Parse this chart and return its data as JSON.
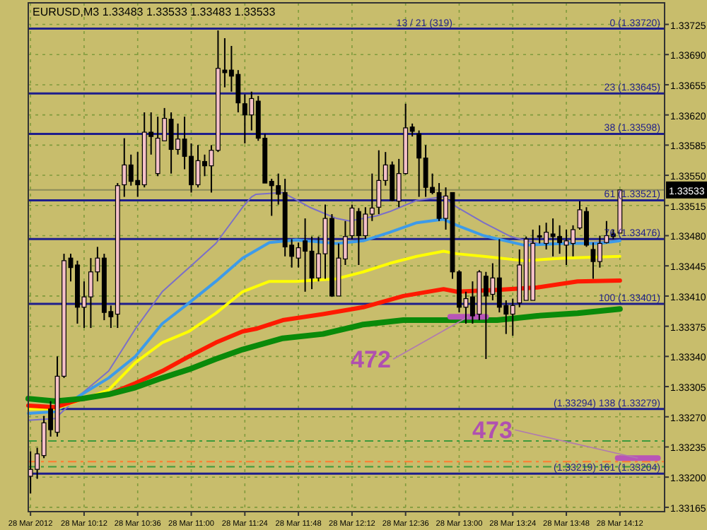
{
  "chart_data": {
    "type": "candlestick",
    "title": "EURUSD,M3  1.33483 1.33533 1.33483 1.33533",
    "x": [
      "2012-03-28T09:48",
      "2012-03-28T09:51",
      "2012-03-28T09:54",
      "2012-03-28T09:57",
      "2012-03-28T10:00",
      "2012-03-28T10:03",
      "2012-03-28T10:06",
      "2012-03-28T10:09",
      "2012-03-28T10:12",
      "2012-03-28T10:15",
      "2012-03-28T10:18",
      "2012-03-28T10:21",
      "2012-03-28T10:24",
      "2012-03-28T10:27",
      "2012-03-28T10:30",
      "2012-03-28T10:33",
      "2012-03-28T10:36",
      "2012-03-28T10:39",
      "2012-03-28T10:42",
      "2012-03-28T10:45",
      "2012-03-28T10:48",
      "2012-03-28T10:51",
      "2012-03-28T10:54",
      "2012-03-28T10:57",
      "2012-03-28T11:00",
      "2012-03-28T11:03",
      "2012-03-28T11:06",
      "2012-03-28T11:09",
      "2012-03-28T11:12",
      "2012-03-28T11:15",
      "2012-03-28T11:18",
      "2012-03-28T11:21",
      "2012-03-28T11:24",
      "2012-03-28T11:27",
      "2012-03-28T11:30",
      "2012-03-28T11:33",
      "2012-03-28T11:36",
      "2012-03-28T11:39",
      "2012-03-28T11:42",
      "2012-03-28T11:45",
      "2012-03-28T11:48",
      "2012-03-28T11:51",
      "2012-03-28T11:54",
      "2012-03-28T11:57",
      "2012-03-28T12:00",
      "2012-03-28T12:03",
      "2012-03-28T12:06",
      "2012-03-28T12:09",
      "2012-03-28T12:12",
      "2012-03-28T12:15",
      "2012-03-28T12:18",
      "2012-03-28T12:21",
      "2012-03-28T12:24",
      "2012-03-28T12:27",
      "2012-03-28T12:30",
      "2012-03-28T12:33",
      "2012-03-28T12:36",
      "2012-03-28T12:39",
      "2012-03-28T12:42",
      "2012-03-28T12:45",
      "2012-03-28T12:48",
      "2012-03-28T12:51",
      "2012-03-28T12:54",
      "2012-03-28T12:57",
      "2012-03-28T13:00",
      "2012-03-28T13:03",
      "2012-03-28T13:06",
      "2012-03-28T13:09",
      "2012-03-28T13:12",
      "2012-03-28T13:15",
      "2012-03-28T13:18",
      "2012-03-28T13:21",
      "2012-03-28T13:24",
      "2012-03-28T13:27",
      "2012-03-28T13:30",
      "2012-03-28T13:33",
      "2012-03-28T13:36",
      "2012-03-28T13:39",
      "2012-03-28T13:42",
      "2012-03-28T13:45",
      "2012-03-28T13:48",
      "2012-03-28T13:51",
      "2012-03-28T13:54",
      "2012-03-28T13:57",
      "2012-03-28T14:00",
      "2012-03-28T14:03",
      "2012-03-28T14:06",
      "2012-03-28T14:09",
      "2012-03-28T14:12"
    ],
    "ohlc": [
      [
        1.33201,
        1.3323,
        1.33181,
        1.33209
      ],
      [
        1.33209,
        1.33234,
        1.33198,
        1.33227
      ],
      [
        1.33225,
        1.33271,
        1.33222,
        1.33263
      ],
      [
        1.33279,
        1.33288,
        1.33247,
        1.33255
      ],
      [
        1.33252,
        1.3334,
        1.33247,
        1.33317
      ],
      [
        1.33317,
        1.33459,
        1.33315,
        1.33451
      ],
      [
        1.33454,
        1.33459,
        1.33427,
        1.33443
      ],
      [
        1.33446,
        1.33451,
        1.33378,
        1.33397
      ],
      [
        1.33397,
        1.33427,
        1.33373,
        1.33409
      ],
      [
        1.33409,
        1.33454,
        1.33373,
        1.33438
      ],
      [
        1.33438,
        1.33467,
        1.33427,
        1.33454
      ],
      [
        1.33454,
        1.33459,
        1.33382,
        1.33391
      ],
      [
        1.33392,
        1.33399,
        1.33373,
        1.33386
      ],
      [
        1.33389,
        1.33541,
        1.33373,
        1.33538
      ],
      [
        1.33539,
        1.33593,
        1.33525,
        1.33562
      ],
      [
        1.33562,
        1.33574,
        1.33538,
        1.33543
      ],
      [
        1.33544,
        1.33577,
        1.33525,
        1.33539
      ],
      [
        1.33539,
        1.33623,
        1.33536,
        1.336
      ],
      [
        1.336,
        1.33623,
        1.33574,
        1.33595
      ],
      [
        1.33552,
        1.33618,
        1.33549,
        1.33593
      ],
      [
        1.3359,
        1.33628,
        1.3359,
        1.33616
      ],
      [
        1.33615,
        1.33623,
        1.33552,
        1.3358
      ],
      [
        1.3358,
        1.3361,
        1.33574,
        1.33592
      ],
      [
        1.33592,
        1.33618,
        1.33557,
        1.33572
      ],
      [
        1.33572,
        1.33587,
        1.3353,
        1.33539
      ],
      [
        1.33539,
        1.33585,
        1.33536,
        1.33567
      ],
      [
        1.33566,
        1.33574,
        1.33549,
        1.33561
      ],
      [
        1.33561,
        1.33585,
        1.3353,
        1.33579
      ],
      [
        1.33579,
        1.33718,
        1.33577,
        1.33674
      ],
      [
        1.33672,
        1.33709,
        1.33652,
        1.33669
      ],
      [
        1.33672,
        1.337,
        1.33647,
        1.33665
      ],
      [
        1.33667,
        1.33672,
        1.33623,
        1.33634
      ],
      [
        1.33633,
        1.33644,
        1.33587,
        1.3362
      ],
      [
        1.3362,
        1.33647,
        1.33602,
        1.33639
      ],
      [
        1.33636,
        1.33642,
        1.3359,
        1.33593
      ],
      [
        1.33593,
        1.33598,
        1.33541,
        1.33541
      ],
      [
        1.33543,
        1.33546,
        1.33503,
        1.33538
      ],
      [
        1.33538,
        1.33552,
        1.33516,
        1.33528
      ],
      [
        1.3353,
        1.33546,
        1.33456,
        1.33467
      ],
      [
        1.33469,
        1.33476,
        1.33443,
        1.33456
      ],
      [
        1.33454,
        1.33472,
        1.33443,
        1.33466
      ],
      [
        1.33474,
        1.335,
        1.33415,
        1.33462
      ],
      [
        1.33462,
        1.33479,
        1.33418,
        1.33431
      ],
      [
        1.33431,
        1.33479,
        1.33427,
        1.33459
      ],
      [
        1.33459,
        1.33516,
        1.3343,
        1.335
      ],
      [
        1.335,
        1.33505,
        1.33409,
        1.3341
      ],
      [
        1.3341,
        1.33471,
        1.3341,
        1.33454
      ],
      [
        1.33453,
        1.33497,
        1.33446,
        1.33479
      ],
      [
        1.3348,
        1.33516,
        1.33476,
        1.33512
      ],
      [
        1.33508,
        1.33512,
        1.33446,
        1.3348
      ],
      [
        1.3348,
        1.33513,
        1.33476,
        1.33505
      ],
      [
        1.33505,
        1.33552,
        1.33497,
        1.33512
      ],
      [
        1.33513,
        1.33579,
        1.33505,
        1.33544
      ],
      [
        1.33544,
        1.33577,
        1.33538,
        1.33562
      ],
      [
        1.33562,
        1.33566,
        1.3352,
        1.33521
      ],
      [
        1.3352,
        1.33569,
        1.33513,
        1.33552
      ],
      [
        1.33552,
        1.33633,
        1.33551,
        1.33605
      ],
      [
        1.33606,
        1.3361,
        1.33595,
        1.33601
      ],
      [
        1.33598,
        1.33602,
        1.33525,
        1.3357
      ],
      [
        1.3357,
        1.33585,
        1.33525,
        1.33536
      ],
      [
        1.33536,
        1.33552,
        1.33528,
        1.3353
      ],
      [
        1.3353,
        1.33541,
        1.33497,
        1.335
      ],
      [
        1.335,
        1.33536,
        1.33487,
        1.33526
      ],
      [
        1.3353,
        1.3353,
        1.3343,
        1.33438
      ],
      [
        1.33438,
        1.3344,
        1.33391,
        1.33397
      ],
      [
        1.33397,
        1.33415,
        1.33378,
        1.33407
      ],
      [
        1.33409,
        1.33427,
        1.33378,
        1.33387
      ],
      [
        1.33389,
        1.3344,
        1.33382,
        1.33438
      ],
      [
        1.33433,
        1.33438,
        1.33337,
        1.3341
      ],
      [
        1.33412,
        1.33448,
        1.33405,
        1.33431
      ],
      [
        1.33431,
        1.33476,
        1.33391,
        1.33397
      ],
      [
        1.33399,
        1.33405,
        1.33366,
        1.33389
      ],
      [
        1.33389,
        1.33407,
        1.33364,
        1.33399
      ],
      [
        1.33402,
        1.33464,
        1.33397,
        1.33446
      ],
      [
        1.33405,
        1.33479,
        1.33405,
        1.33476
      ],
      [
        1.33405,
        1.33487,
        1.33405,
        1.33471
      ],
      [
        1.3348,
        1.33492,
        1.33471,
        1.33479
      ],
      [
        1.33471,
        1.33495,
        1.33464,
        1.33484
      ],
      [
        1.33482,
        1.335,
        1.33456,
        1.33479
      ],
      [
        1.33479,
        1.33492,
        1.33459,
        1.33472
      ],
      [
        1.33469,
        1.33487,
        1.33446,
        1.33474
      ],
      [
        1.33471,
        1.33492,
        1.33456,
        1.33487
      ],
      [
        1.33489,
        1.3352,
        1.33487,
        1.3351
      ],
      [
        1.33508,
        1.33513,
        1.33467,
        1.33469
      ],
      [
        1.33464,
        1.33472,
        1.3343,
        1.3345
      ],
      [
        1.3345,
        1.3348,
        1.33443,
        1.33471
      ],
      [
        1.33472,
        1.33497,
        1.33471,
        1.3348
      ],
      [
        1.33482,
        1.33487,
        1.33476,
        1.33479
      ],
      [
        1.33483,
        1.33533,
        1.33483,
        1.33533
      ]
    ],
    "series": [
      {
        "type": "line",
        "color": "#7b6fc8",
        "x": [
          "2012-03-28T09:47",
          "2012-03-28T09:59",
          "2012-03-28T10:11",
          "2012-03-28T10:23",
          "2012-03-28T10:35",
          "2012-03-28T10:47",
          "2012-03-28T10:59",
          "2012-03-28T11:11",
          "2012-03-28T11:23",
          "2012-03-28T11:27",
          "2012-03-28T11:29",
          "2012-03-28T11:41",
          "2012-03-28T11:53",
          "2012-03-28T12:05",
          "2012-03-28T12:11",
          "2012-03-28T12:23",
          "2012-03-28T12:29",
          "2012-03-28T12:41",
          "2012-03-28T12:53",
          "2012-03-28T12:59",
          "2012-03-28T13:11",
          "2012-03-28T13:23",
          "2012-03-28T13:35",
          "2012-03-28T13:59",
          "2012-03-28T14:12"
        ],
        "values": [
          1.33266,
          1.33268,
          1.33297,
          1.33323,
          1.33372,
          1.33415,
          1.33443,
          1.33471,
          1.33513,
          1.33525,
          1.33528,
          1.3353,
          1.33513,
          1.335,
          1.33497,
          1.33503,
          1.33508,
          1.33521,
          1.33525,
          1.33513,
          1.33495,
          1.33479,
          1.33471,
          1.33472,
          1.33474
        ]
      },
      {
        "type": "line",
        "color": "#3d9be9",
        "x": [
          "2012-03-28T09:47",
          "2012-03-28T09:59",
          "2012-03-28T10:11",
          "2012-03-28T10:23",
          "2012-03-28T10:35",
          "2012-03-28T10:47",
          "2012-03-28T10:59",
          "2012-03-28T11:11",
          "2012-03-28T11:23",
          "2012-03-28T11:35",
          "2012-03-28T11:47",
          "2012-03-28T12:05",
          "2012-03-28T12:17",
          "2012-03-28T12:29",
          "2012-03-28T12:41",
          "2012-03-28T12:53",
          "2012-03-28T12:59",
          "2012-03-28T13:11",
          "2012-03-28T13:29",
          "2012-03-28T13:47",
          "2012-03-28T14:03",
          "2012-03-28T14:12"
        ],
        "values": [
          1.33274,
          1.33276,
          1.33296,
          1.33315,
          1.3334,
          1.33378,
          1.33402,
          1.33427,
          1.33454,
          1.33472,
          1.33475,
          1.33471,
          1.33474,
          1.33484,
          1.33495,
          1.33499,
          1.33492,
          1.3348,
          1.33469,
          1.33471,
          1.33471,
          1.33474
        ]
      },
      {
        "type": "line",
        "color": "#ffff00",
        "x": [
          "2012-03-28T09:47",
          "2012-03-28T09:59",
          "2012-03-28T10:23",
          "2012-03-28T10:35",
          "2012-03-28T10:47",
          "2012-03-28T10:59",
          "2012-03-28T11:11",
          "2012-03-28T11:23",
          "2012-03-28T11:35",
          "2012-03-28T11:47",
          "2012-03-28T12:05",
          "2012-03-28T12:17",
          "2012-03-28T12:29",
          "2012-03-28T12:41",
          "2012-03-28T12:53",
          "2012-03-28T12:59",
          "2012-03-28T13:11",
          "2012-03-28T13:29",
          "2012-03-28T13:47",
          "2012-03-28T14:12"
        ],
        "values": [
          1.33279,
          1.33279,
          1.33301,
          1.33333,
          1.33356,
          1.33369,
          1.3339,
          1.33415,
          1.33427,
          1.33427,
          1.3343,
          1.33438,
          1.33448,
          1.33456,
          1.33462,
          1.33459,
          1.33456,
          1.33451,
          1.33454,
          1.33456
        ]
      },
      {
        "type": "line",
        "color": "#ff1a00",
        "x": [
          "2012-03-28T09:47",
          "2012-03-28T09:59",
          "2012-03-28T10:11",
          "2012-03-28T10:23",
          "2012-03-28T10:35",
          "2012-03-28T10:47",
          "2012-03-28T10:59",
          "2012-03-28T11:11",
          "2012-03-28T11:23",
          "2012-03-28T11:29",
          "2012-03-28T11:41",
          "2012-03-28T11:59",
          "2012-03-28T12:17",
          "2012-03-28T12:35",
          "2012-03-28T12:53",
          "2012-03-28T12:59",
          "2012-03-28T13:17",
          "2012-03-28T13:35",
          "2012-03-28T13:53",
          "2012-03-28T14:12"
        ],
        "values": [
          1.33283,
          1.33281,
          1.33291,
          1.33296,
          1.33309,
          1.33323,
          1.3334,
          1.33356,
          1.33369,
          1.33372,
          1.33382,
          1.33389,
          1.33397,
          1.3341,
          1.33418,
          1.33415,
          1.33417,
          1.3342,
          1.33427,
          1.33428
        ]
      },
      {
        "type": "line",
        "color": "#0a8a0a",
        "x": [
          "2012-03-28T09:47",
          "2012-03-28T09:59",
          "2012-03-28T10:11",
          "2012-03-28T10:23",
          "2012-03-28T10:35",
          "2012-03-28T10:47",
          "2012-03-28T10:59",
          "2012-03-28T11:11",
          "2012-03-28T11:23",
          "2012-03-28T11:41",
          "2012-03-28T11:59",
          "2012-03-28T12:17",
          "2012-03-28T12:35",
          "2012-03-28T13:17",
          "2012-03-28T13:35",
          "2012-03-28T13:53",
          "2012-03-28T14:12"
        ],
        "values": [
          1.33291,
          1.33288,
          1.33291,
          1.33296,
          1.33304,
          1.33315,
          1.33325,
          1.33337,
          1.33348,
          1.33361,
          1.33366,
          1.33377,
          1.33382,
          1.33382,
          1.33387,
          1.3339,
          1.33395
        ]
      },
      {
        "type": "line",
        "color": "#b855b8",
        "x": [
          "2012-03-28T12:56",
          "2012-03-28T13:12"
        ],
        "values": [
          1.33386,
          1.33386
        ]
      },
      {
        "type": "line",
        "color": "#b855b8",
        "x": [
          "2012-03-28T14:11",
          "2012-03-28T14:29"
        ],
        "values": [
          1.33222,
          1.33222
        ]
      }
    ],
    "xlim": [
      "2012-03-28T09:47",
      "2012-03-28T14:32"
    ],
    "ylim": [
      1.3316,
      1.3375
    ],
    "xticks": [
      {
        "value": "2012-03-28T09:48",
        "label": "28 Mar 2012"
      },
      {
        "value": "2012-03-28T10:12",
        "label": "28 Mar 10:12"
      },
      {
        "value": "2012-03-28T10:36",
        "label": "28 Mar 10:36"
      },
      {
        "value": "2012-03-28T11:00",
        "label": "28 Mar 11:00"
      },
      {
        "value": "2012-03-28T11:24",
        "label": "28 Mar 11:24"
      },
      {
        "value": "2012-03-28T11:48",
        "label": "28 Mar 11:48"
      },
      {
        "value": "2012-03-28T12:12",
        "label": "28 Mar 12:12"
      },
      {
        "value": "2012-03-28T12:36",
        "label": "28 Mar 12:36"
      },
      {
        "value": "2012-03-28T13:00",
        "label": "28 Mar 13:00"
      },
      {
        "value": "2012-03-28T13:24",
        "label": "28 Mar 13:24"
      },
      {
        "value": "2012-03-28T13:48",
        "label": "28 Mar 13:48"
      },
      {
        "value": "2012-03-28T14:12",
        "label": "28 Mar 14:12"
      }
    ],
    "yticks": [
      {
        "value": 1.33725,
        "label": "1.33725"
      },
      {
        "value": 1.3369,
        "label": "1.33690"
      },
      {
        "value": 1.33655,
        "label": "1.33655"
      },
      {
        "value": 1.3362,
        "label": "1.33620"
      },
      {
        "value": 1.33585,
        "label": "1.33585"
      },
      {
        "value": 1.3355,
        "label": "1.33550"
      },
      {
        "value": 1.33515,
        "label": "1.33515"
      },
      {
        "value": 1.3348,
        "label": "1.33480"
      },
      {
        "value": 1.33445,
        "label": "1.33445"
      },
      {
        "value": 1.3341,
        "label": "1.33410"
      },
      {
        "value": 1.33375,
        "label": "1.33375"
      },
      {
        "value": 1.3334,
        "label": "1.33340"
      },
      {
        "value": 1.33305,
        "label": "1.33305"
      },
      {
        "value": 1.3327,
        "label": "1.33270"
      },
      {
        "value": 1.33235,
        "label": "1.33235"
      },
      {
        "value": 1.332,
        "label": "1.33200"
      },
      {
        "value": 1.33165,
        "label": "1.33165"
      }
    ],
    "grid": true,
    "ref_lines": [
      {
        "axis": "y",
        "value": 1.3372,
        "label": "0 (1.33720)",
        "color": "#1e1e8c"
      },
      {
        "axis": "y",
        "value": 1.33645,
        "label": "23 (1.33645)",
        "color": "#1e1e8c"
      },
      {
        "axis": "y",
        "value": 1.33598,
        "label": "38 (1.33598)",
        "color": "#1e1e8c"
      },
      {
        "axis": "y",
        "value": 1.33521,
        "label": "61 (1.33521)",
        "color": "#1e1e8c"
      },
      {
        "axis": "y",
        "value": 1.33476,
        "label": "76 (1.33476)",
        "color": "#1e1e8c"
      },
      {
        "axis": "y",
        "value": 1.33401,
        "label": "100 (1.33401)",
        "color": "#1e1e8c"
      },
      {
        "axis": "y",
        "value": 1.33279,
        "label": "(1.33294) 138 (1.33279)",
        "color": "#1e1e8c"
      },
      {
        "axis": "y",
        "value": 1.33204,
        "label": "(1.33219) 161 (1.33204)",
        "color": "#1e1e8c"
      },
      {
        "axis": "y",
        "value": 1.33242,
        "color": "#3c9a3c",
        "line_style": "dashed"
      },
      {
        "axis": "y",
        "value": 1.33218,
        "color": "#ff7a30",
        "line_style": "dashed"
      },
      {
        "axis": "y",
        "value": 1.33212,
        "color": "#3c9a3c",
        "line_style": "dashed"
      },
      {
        "axis": "y",
        "value": 1.33533,
        "label": "1.33533",
        "color": "#8c8c5a",
        "line_style": "solid"
      }
    ],
    "annotations": [
      "13 / 21 (319)",
      {
        "text": "472",
        "x": "2012-03-28T13:04",
        "y": 1.33386
      },
      {
        "text": "473",
        "x": "2012-03-28T14:20",
        "y": 1.33222
      }
    ]
  }
}
